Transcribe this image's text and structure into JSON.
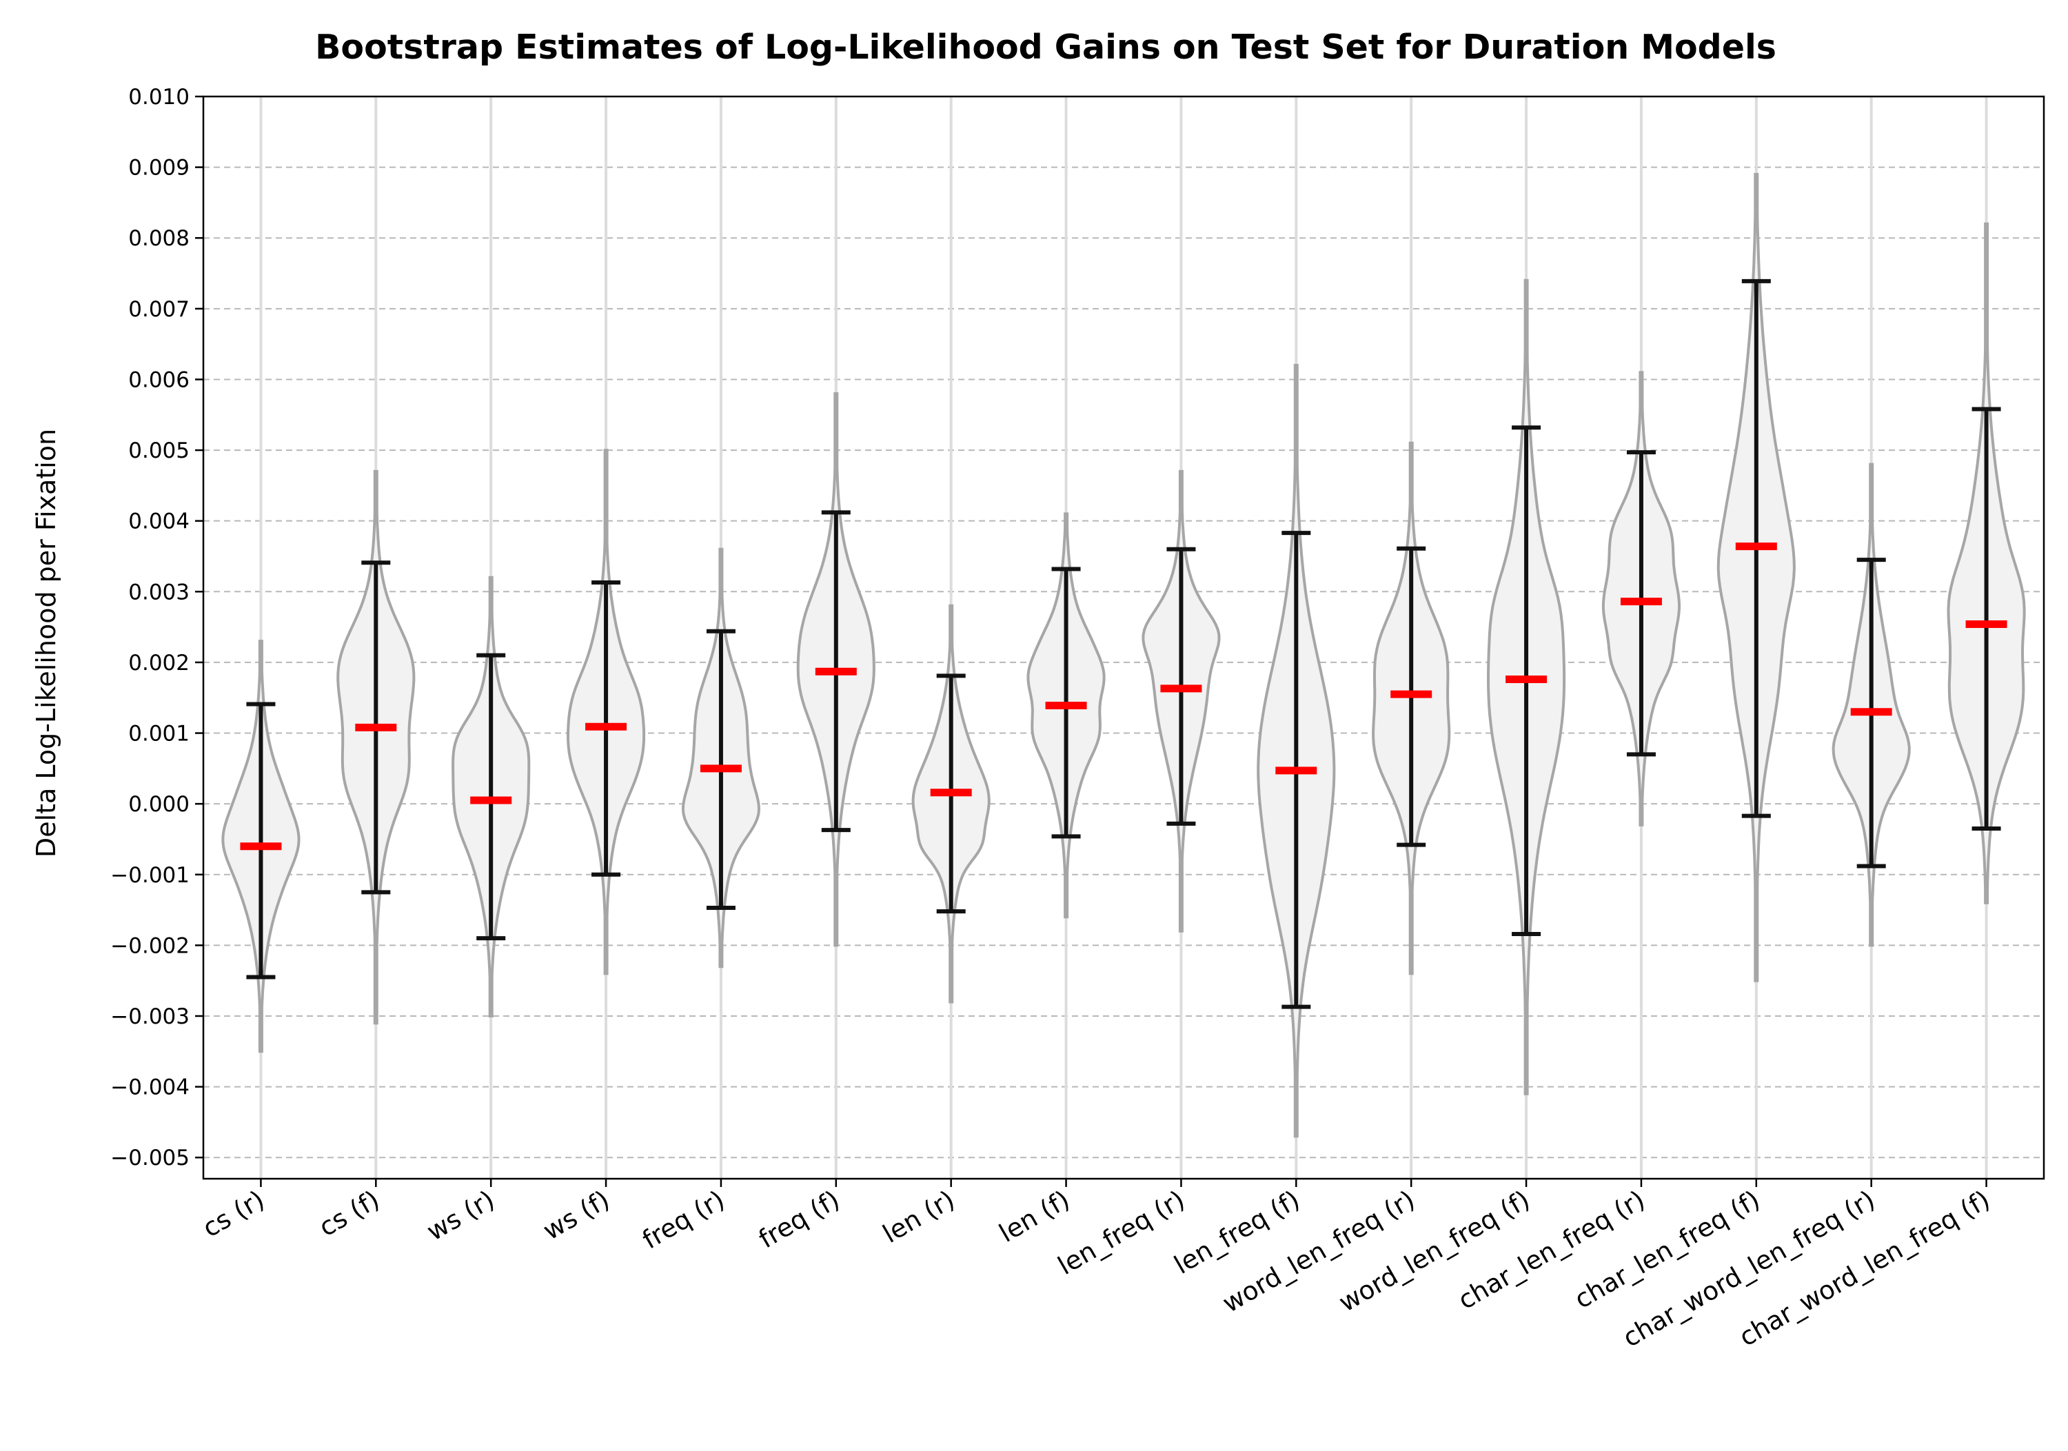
{
  "chart_data": {
    "type": "violin",
    "title": "Bootstrap Estimates of Log-Likelihood Gains on Test Set for Duration Models",
    "xlabel": "",
    "ylabel": "Delta Log-Likelihood per Fixation",
    "ylim": [
      -0.0053,
      0.01
    ],
    "yticks": [
      -0.005,
      -0.004,
      -0.003,
      -0.002,
      -0.001,
      0.0,
      0.001,
      0.002,
      0.003,
      0.004,
      0.005,
      0.006,
      0.007,
      0.008,
      0.009,
      0.01
    ],
    "ytick_labels": [
      "−0.005",
      "−0.004",
      "−0.003",
      "−0.002",
      "−0.001",
      "0.000",
      "0.001",
      "0.002",
      "0.003",
      "0.004",
      "0.005",
      "0.006",
      "0.007",
      "0.008",
      "0.009",
      "0.010"
    ],
    "grid": "y-dashed",
    "colors": {
      "violin_fill": "#f2f2f2",
      "violin_edge": "#a6a6a6",
      "whisker": "#111111",
      "median": "#ff0000",
      "vgrid": "#dcdcdc",
      "hgrid": "#b8b8b8"
    },
    "categories": [
      "cs (r)",
      "cs (f)",
      "ws (r)",
      "ws (f)",
      "freq (r)",
      "freq (f)",
      "len (r)",
      "len (f)",
      "len_freq (r)",
      "len_freq (f)",
      "word_len_freq (r)",
      "word_len_freq (f)",
      "char_len_freq (r)",
      "char_len_freq (f)",
      "char_word_len_freq (r)",
      "char_word_len_freq (f)"
    ],
    "series": [
      {
        "median": -0.0006,
        "whisker_low": -0.00245,
        "whisker_high": 0.00141,
        "min": -0.0035,
        "max": 0.0023
      },
      {
        "median": 0.00108,
        "whisker_low": -0.00125,
        "whisker_high": 0.00341,
        "min": -0.0031,
        "max": 0.0047
      },
      {
        "median": 5e-05,
        "whisker_low": -0.0019,
        "whisker_high": 0.0021,
        "min": -0.003,
        "max": 0.0032
      },
      {
        "median": 0.00109,
        "whisker_low": -0.001,
        "whisker_high": 0.00313,
        "min": -0.0024,
        "max": 0.005
      },
      {
        "median": 0.0005,
        "whisker_low": -0.00147,
        "whisker_high": 0.00244,
        "min": -0.0023,
        "max": 0.0036
      },
      {
        "median": 0.00187,
        "whisker_low": -0.00037,
        "whisker_high": 0.00412,
        "min": -0.002,
        "max": 0.0058
      },
      {
        "median": 0.00016,
        "whisker_low": -0.00152,
        "whisker_high": 0.00181,
        "min": -0.0028,
        "max": 0.0028
      },
      {
        "median": 0.00139,
        "whisker_low": -0.00046,
        "whisker_high": 0.00332,
        "min": -0.0016,
        "max": 0.0041
      },
      {
        "median": 0.00163,
        "whisker_low": -0.00028,
        "whisker_high": 0.0036,
        "min": -0.0018,
        "max": 0.0047
      },
      {
        "median": 0.00047,
        "whisker_low": -0.00287,
        "whisker_high": 0.00383,
        "min": -0.0047,
        "max": 0.0062
      },
      {
        "median": 0.00155,
        "whisker_low": -0.00058,
        "whisker_high": 0.00361,
        "min": -0.0024,
        "max": 0.0051
      },
      {
        "median": 0.00176,
        "whisker_low": -0.00184,
        "whisker_high": 0.00532,
        "min": -0.0041,
        "max": 0.0074
      },
      {
        "median": 0.00286,
        "whisker_low": 0.0007,
        "whisker_high": 0.00497,
        "min": -0.0003,
        "max": 0.0061
      },
      {
        "median": 0.00364,
        "whisker_low": -0.00017,
        "whisker_high": 0.00739,
        "min": -0.0025,
        "max": 0.0089
      },
      {
        "median": 0.0013,
        "whisker_low": -0.00088,
        "whisker_high": 0.00345,
        "min": -0.002,
        "max": 0.0048
      },
      {
        "median": 0.00254,
        "whisker_low": -0.00035,
        "whisker_high": 0.00558,
        "min": -0.0014,
        "max": 0.0082
      }
    ]
  }
}
